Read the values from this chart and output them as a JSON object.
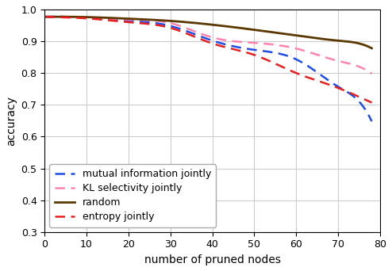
{
  "title": "",
  "xlabel": "number of pruned nodes",
  "ylabel": "accuracy",
  "xlim": [
    0,
    80
  ],
  "ylim": [
    0.3,
    1.0
  ],
  "xticks": [
    0,
    10,
    20,
    30,
    40,
    50,
    60,
    70,
    80
  ],
  "yticks": [
    0.3,
    0.4,
    0.5,
    0.6,
    0.7,
    0.8,
    0.9,
    1.0
  ],
  "series": {
    "mutual_information": {
      "label": "mutual information jointly",
      "color": "#1f4de8",
      "linestyle": "dashed",
      "linewidth": 1.8,
      "x": [
        0,
        5,
        10,
        20,
        30,
        40,
        50,
        60,
        70,
        75,
        78
      ],
      "y": [
        0.977,
        0.977,
        0.974,
        0.965,
        0.948,
        0.902,
        0.873,
        0.843,
        0.757,
        0.71,
        0.648
      ]
    },
    "kl_selectivity": {
      "label": "KL selectivity jointly",
      "color": "#ff82b0",
      "linestyle": "dashed",
      "linewidth": 1.8,
      "x": [
        0,
        5,
        10,
        20,
        30,
        40,
        50,
        60,
        70,
        75,
        78
      ],
      "y": [
        0.977,
        0.977,
        0.975,
        0.968,
        0.957,
        0.912,
        0.895,
        0.877,
        0.838,
        0.82,
        0.798
      ]
    },
    "random": {
      "label": "random",
      "color": "#5a3800",
      "linestyle": "solid",
      "linewidth": 2.0,
      "x": [
        0,
        5,
        10,
        20,
        30,
        40,
        50,
        60,
        70,
        75,
        78
      ],
      "y": [
        0.977,
        0.977,
        0.976,
        0.971,
        0.964,
        0.952,
        0.936,
        0.918,
        0.902,
        0.893,
        0.878
      ]
    },
    "entropy": {
      "label": "entropy jointly",
      "color": "#e81f1f",
      "linestyle": "dashed",
      "linewidth": 1.8,
      "x": [
        0,
        5,
        10,
        20,
        30,
        40,
        50,
        60,
        70,
        75,
        78
      ],
      "y": [
        0.977,
        0.975,
        0.972,
        0.96,
        0.942,
        0.893,
        0.857,
        0.8,
        0.753,
        0.725,
        0.707
      ]
    }
  },
  "legend_loc": "lower left",
  "legend_fontsize": 9,
  "figsize": [
    4.94,
    3.42
  ],
  "dpi": 100,
  "background_color": "#ffffff",
  "grid": true,
  "grid_color": "#cccccc"
}
